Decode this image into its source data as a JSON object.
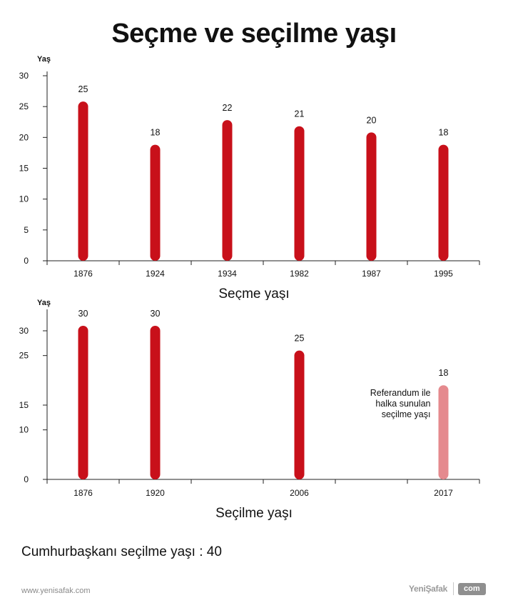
{
  "title": "Seçme ve seçilme yaşı",
  "colors": {
    "bar": "#c8101a",
    "bar_light": "#e58a8e",
    "axis": "#222222"
  },
  "chart_data": [
    {
      "type": "bar",
      "title": "Seçme yaşı",
      "ylabel": "Yaş",
      "ylim": [
        0,
        30
      ],
      "yticks": [
        0,
        5,
        10,
        15,
        20,
        25,
        30
      ],
      "categories": [
        "1876",
        "1924",
        "1934",
        "1982",
        "1987",
        "1995"
      ],
      "values": [
        25,
        18,
        22,
        21,
        20,
        18
      ],
      "grid": false,
      "legend": "none"
    },
    {
      "type": "bar",
      "title": "Seçilme yaşı",
      "ylabel": "Yaş",
      "ylim": [
        0,
        30
      ],
      "yticks": [
        0,
        10,
        15,
        25,
        30
      ],
      "categories": [
        "1876",
        "1920",
        "",
        "2006",
        "",
        "2017"
      ],
      "values": [
        30,
        30,
        null,
        25,
        null,
        18
      ],
      "highlight_index": 5,
      "annotation": {
        "lines": [
          "Referandum ile",
          "halka sunulan",
          "seçilme yaşı"
        ],
        "category": "2017"
      },
      "grid": false,
      "legend": "none"
    }
  ],
  "footer": {
    "note": "Cumhurbaşkanı seçilme yaşı : 40",
    "website": "www.yenisafak.com",
    "brand": "YeniŞafak",
    "brand_suffix": "com"
  }
}
